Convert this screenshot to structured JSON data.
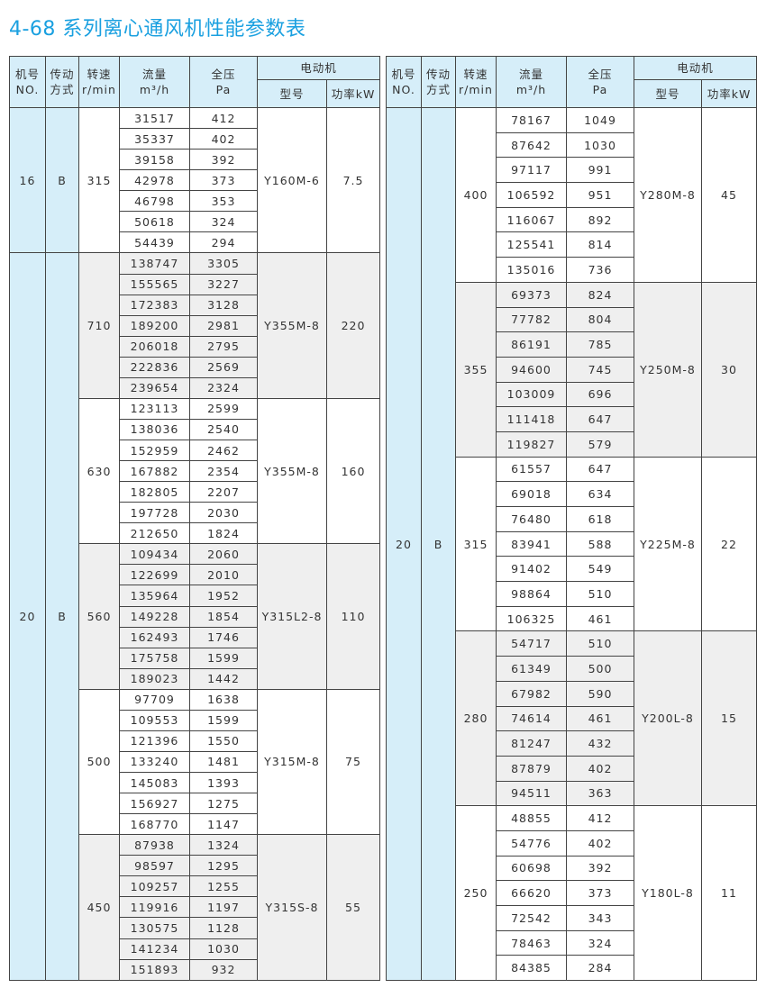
{
  "title": "4-68 系列离心通风机性能参数表",
  "header": {
    "no": "机号",
    "no_en": "NO.",
    "drive": "传动",
    "drive2": "方式",
    "speed": "转速",
    "speed_unit": "r/min",
    "flow": "流量",
    "flow_unit": "m³/h",
    "pressure": "全压",
    "pressure_unit": "Pa",
    "motor": "电动机",
    "model": "型号",
    "power": "功率kW"
  },
  "colors": {
    "title": "#1aa0e0",
    "header_bg": "#d6eef9",
    "alt_row_bg": "#efefef"
  },
  "tables": [
    {
      "sections": [
        {
          "no": "16",
          "drive": "B",
          "groups": [
            {
              "speed": "315",
              "flow": [
                "31517",
                "35337",
                "39158",
                "42978",
                "46798",
                "50618",
                "54439"
              ],
              "pressure": [
                "412",
                "402",
                "392",
                "373",
                "353",
                "324",
                "294"
              ],
              "model": "Y160M-6",
              "power": "7.5"
            }
          ]
        },
        {
          "no": "20",
          "drive": "B",
          "groups": [
            {
              "speed": "710",
              "flow": [
                "138747",
                "155565",
                "172383",
                "189200",
                "206018",
                "222836",
                "239654"
              ],
              "pressure": [
                "3305",
                "3227",
                "3128",
                "2981",
                "2795",
                "2569",
                "2324"
              ],
              "model": "Y355M-8",
              "power": "220"
            },
            {
              "speed": "630",
              "flow": [
                "123113",
                "138036",
                "152959",
                "167882",
                "182805",
                "197728",
                "212650"
              ],
              "pressure": [
                "2599",
                "2540",
                "2462",
                "2354",
                "2207",
                "2030",
                "1824"
              ],
              "model": "Y355M-8",
              "power": "160"
            },
            {
              "speed": "560",
              "flow": [
                "109434",
                "122699",
                "135964",
                "149228",
                "162493",
                "175758",
                "189023"
              ],
              "pressure": [
                "2060",
                "2010",
                "1952",
                "1854",
                "1746",
                "1599",
                "1442"
              ],
              "model": "Y315L2-8",
              "power": "110"
            },
            {
              "speed": "500",
              "flow": [
                "97709",
                "109553",
                "121396",
                "133240",
                "145083",
                "156927",
                "168770"
              ],
              "pressure": [
                "1638",
                "1599",
                "1550",
                "1481",
                "1393",
                "1275",
                "1147"
              ],
              "model": "Y315M-8",
              "power": "75"
            },
            {
              "speed": "450",
              "flow": [
                "87938",
                "98597",
                "109257",
                "119916",
                "130575",
                "141234",
                "151893"
              ],
              "pressure": [
                "1324",
                "1295",
                "1255",
                "1197",
                "1128",
                "1030",
                "932"
              ],
              "model": "Y315S-8",
              "power": "55"
            }
          ]
        }
      ]
    },
    {
      "sections": [
        {
          "no": "20",
          "drive": "B",
          "groups": [
            {
              "speed": "400",
              "flow": [
                "78167",
                "87642",
                "97117",
                "106592",
                "116067",
                "125541",
                "135016"
              ],
              "pressure": [
                "1049",
                "1030",
                "991",
                "951",
                "892",
                "814",
                "736"
              ],
              "model": "Y280M-8",
              "power": "45"
            },
            {
              "speed": "355",
              "flow": [
                "69373",
                "77782",
                "86191",
                "94600",
                "103009",
                "111418",
                "119827"
              ],
              "pressure": [
                "824",
                "804",
                "785",
                "745",
                "696",
                "647",
                "579"
              ],
              "model": "Y250M-8",
              "power": "30"
            },
            {
              "speed": "315",
              "flow": [
                "61557",
                "69018",
                "76480",
                "83941",
                "91402",
                "98864",
                "106325"
              ],
              "pressure": [
                "647",
                "634",
                "618",
                "588",
                "549",
                "510",
                "461"
              ],
              "model": "Y225M-8",
              "power": "22"
            },
            {
              "speed": "280",
              "flow": [
                "54717",
                "61349",
                "67982",
                "74614",
                "81247",
                "87879",
                "94511"
              ],
              "pressure": [
                "510",
                "500",
                "590",
                "461",
                "432",
                "402",
                "363"
              ],
              "model": "Y200L-8",
              "power": "15"
            },
            {
              "speed": "250",
              "flow": [
                "48855",
                "54776",
                "60698",
                "66620",
                "72542",
                "78463",
                "84385"
              ],
              "pressure": [
                "412",
                "402",
                "392",
                "373",
                "343",
                "324",
                "284"
              ],
              "model": "Y180L-8",
              "power": "11"
            }
          ]
        }
      ]
    }
  ]
}
